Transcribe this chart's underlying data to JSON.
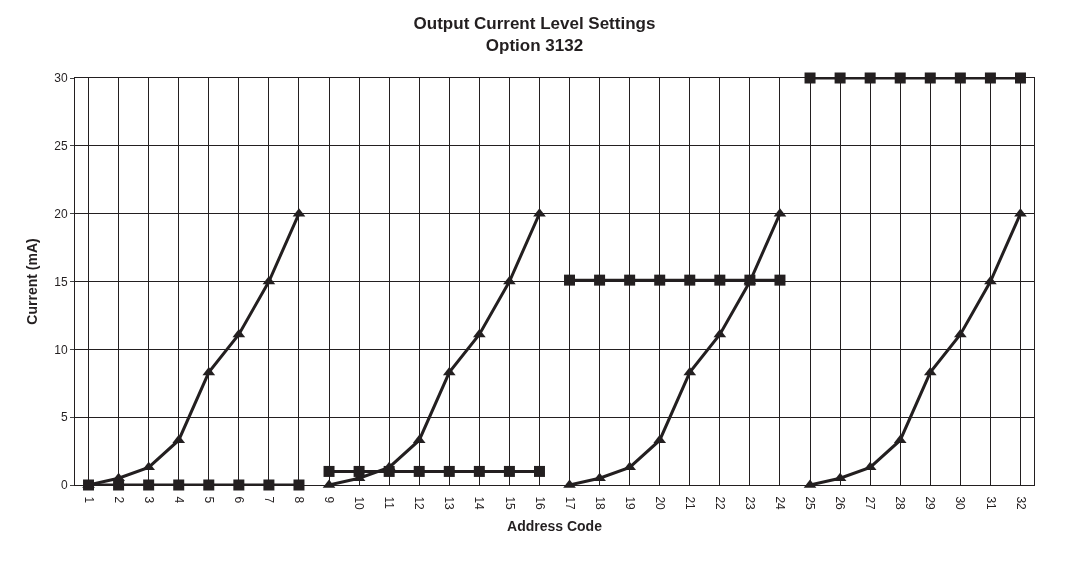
{
  "chart_data": {
    "type": "line",
    "title": "Output Current Level Settings\nOption 3132",
    "xlabel": "Address Code",
    "ylabel": "Current (mA)",
    "categories": [
      "1",
      "2",
      "3",
      "4",
      "5",
      "6",
      "7",
      "8",
      "9",
      "10",
      "11",
      "12",
      "13",
      "14",
      "15",
      "16",
      "17",
      "18",
      "19",
      "20",
      "21",
      "22",
      "23",
      "24",
      "25",
      "26",
      "27",
      "28",
      "29",
      "30",
      "31",
      "32"
    ],
    "ylim": [
      0,
      30
    ],
    "yticks": [
      0,
      5,
      10,
      15,
      20,
      25,
      30
    ],
    "grid": true,
    "line_style": "solid",
    "series": [
      {
        "color": "#231f20",
        "marker": "triangle",
        "values": [
          0,
          0.5,
          1.3,
          3.3,
          8.3,
          11.1,
          15,
          20,
          null,
          null,
          null,
          null,
          null,
          null,
          null,
          null,
          null,
          null,
          null,
          null,
          null,
          null,
          null,
          null,
          null,
          null,
          null,
          null,
          null,
          null,
          null,
          null
        ]
      },
      {
        "color": "#231f20",
        "marker": "triangle",
        "values": [
          null,
          null,
          null,
          null,
          null,
          null,
          null,
          null,
          0,
          0.5,
          1.3,
          3.3,
          8.3,
          11.1,
          15,
          20,
          null,
          null,
          null,
          null,
          null,
          null,
          null,
          null,
          null,
          null,
          null,
          null,
          null,
          null,
          null,
          null
        ]
      },
      {
        "color": "#231f20",
        "marker": "triangle",
        "values": [
          null,
          null,
          null,
          null,
          null,
          null,
          null,
          null,
          null,
          null,
          null,
          null,
          null,
          null,
          null,
          null,
          0,
          0.5,
          1.3,
          3.3,
          8.3,
          11.1,
          15,
          20,
          null,
          null,
          null,
          null,
          null,
          null,
          null,
          null
        ]
      },
      {
        "color": "#231f20",
        "marker": "triangle",
        "values": [
          null,
          null,
          null,
          null,
          null,
          null,
          null,
          null,
          null,
          null,
          null,
          null,
          null,
          null,
          null,
          null,
          null,
          null,
          null,
          null,
          null,
          null,
          null,
          null,
          0,
          0.5,
          1.3,
          3.3,
          8.3,
          11.1,
          15,
          20
        ]
      },
      {
        "color": "#231f20",
        "marker": "square",
        "values": [
          0,
          0,
          0,
          0,
          0,
          0,
          0,
          0,
          null,
          null,
          null,
          null,
          null,
          null,
          null,
          null,
          null,
          null,
          null,
          null,
          null,
          null,
          null,
          null,
          null,
          null,
          null,
          null,
          null,
          null,
          null,
          null
        ]
      },
      {
        "color": "#231f20",
        "marker": "square",
        "values": [
          null,
          null,
          null,
          null,
          null,
          null,
          null,
          null,
          1,
          1,
          1,
          1,
          1,
          1,
          1,
          1,
          null,
          null,
          null,
          null,
          null,
          null,
          null,
          null,
          null,
          null,
          null,
          null,
          null,
          null,
          null,
          null
        ]
      },
      {
        "color": "#231f20",
        "marker": "square",
        "values": [
          null,
          null,
          null,
          null,
          null,
          null,
          null,
          null,
          null,
          null,
          null,
          null,
          null,
          null,
          null,
          null,
          15.1,
          15.1,
          15.1,
          15.1,
          15.1,
          15.1,
          15.1,
          15.1,
          null,
          null,
          null,
          null,
          null,
          null,
          null,
          null
        ]
      },
      {
        "color": "#231f20",
        "marker": "square",
        "values": [
          null,
          null,
          null,
          null,
          null,
          null,
          null,
          null,
          null,
          null,
          null,
          null,
          null,
          null,
          null,
          null,
          null,
          null,
          null,
          null,
          null,
          null,
          null,
          null,
          30,
          30,
          30,
          30,
          30,
          30,
          30,
          30
        ]
      }
    ]
  }
}
